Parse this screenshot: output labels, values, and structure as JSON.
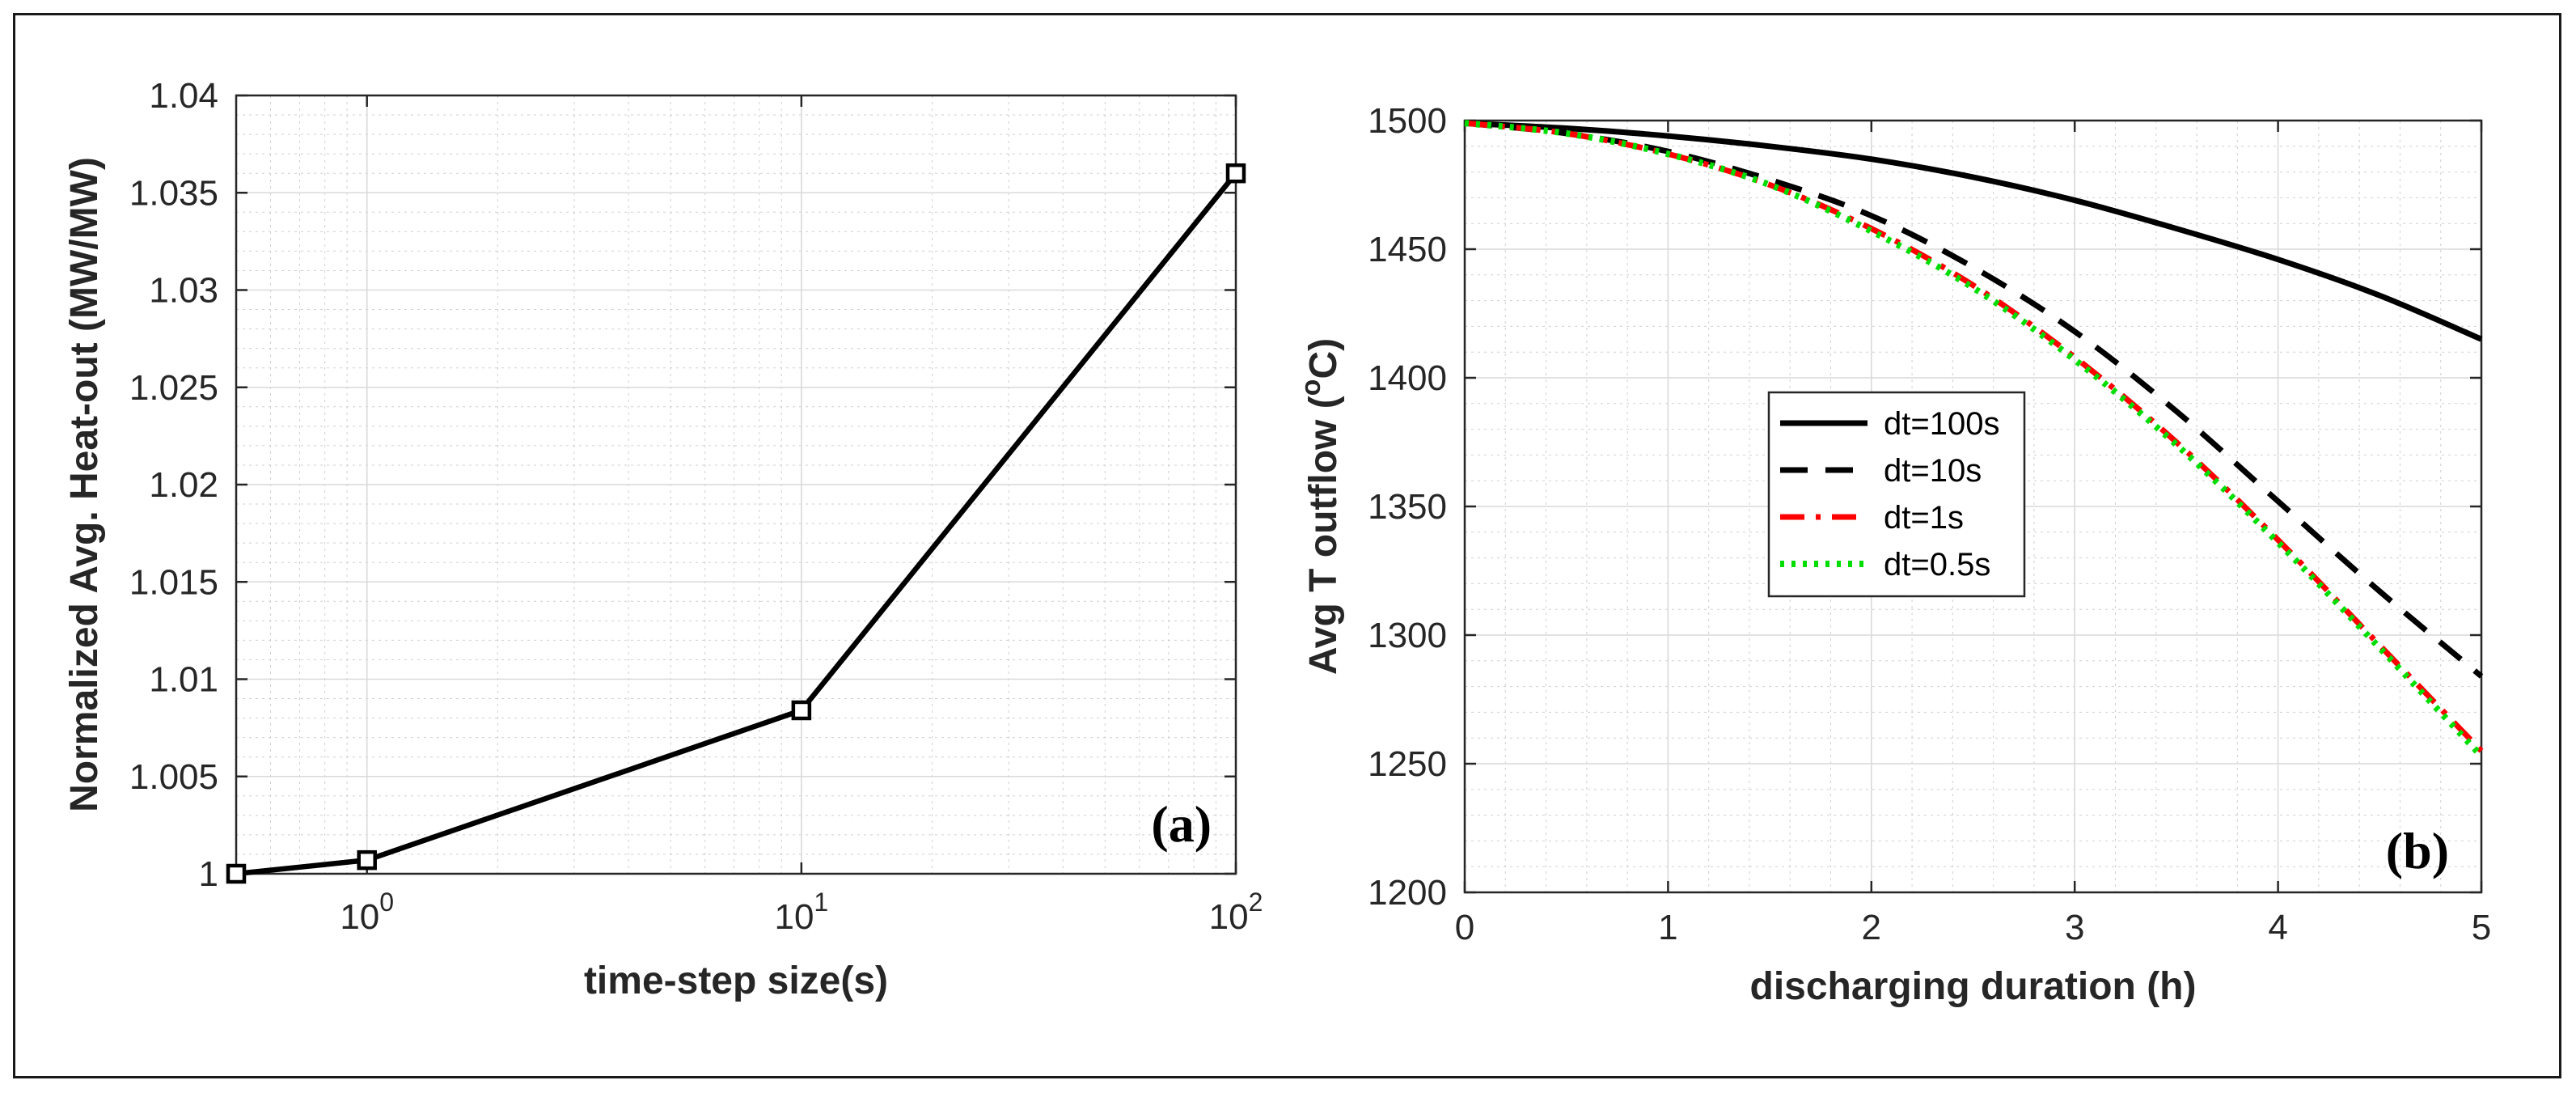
{
  "chart_data": [
    {
      "type": "line",
      "panel_label": "(a)",
      "xscale": "log",
      "xlabel": "time-step size(s)",
      "ylabel": "Normalized Avg. Heat-out (MW/MW)",
      "xlim": [
        0.5,
        100
      ],
      "ylim": [
        1,
        1.04
      ],
      "xticks": [
        1,
        10,
        100
      ],
      "xtick_base": "10",
      "xtick_exponents": [
        "0",
        "1",
        "2"
      ],
      "yticks": [
        1,
        1.005,
        1.01,
        1.015,
        1.02,
        1.025,
        1.03,
        1.035,
        1.04
      ],
      "ytick_labels": [
        "1",
        "1.005",
        "1.01",
        "1.015",
        "1.02",
        "1.025",
        "1.03",
        "1.035",
        "1.04"
      ],
      "grid": true,
      "series": [
        {
          "name": "normalized heat-out",
          "x": [
            0.5,
            1,
            10,
            100
          ],
          "values": [
            1.0,
            1.0007,
            1.0084,
            1.036
          ],
          "color": "#000000",
          "marker": "square"
        }
      ]
    },
    {
      "type": "line",
      "panel_label": "(b)",
      "xlabel": "discharging duration (h)",
      "ylabel": "Avg T outflow",
      "ylabel_unit": "(oC)",
      "xlim": [
        0,
        5
      ],
      "ylim": [
        1200,
        1500
      ],
      "xticks": [
        0,
        1,
        2,
        3,
        4,
        5
      ],
      "yticks": [
        1200,
        1250,
        1300,
        1350,
        1400,
        1450,
        1500
      ],
      "grid": true,
      "legend_position": "center-left",
      "x": [
        0,
        0.5,
        1,
        1.5,
        2,
        2.5,
        3,
        3.5,
        4,
        4.5,
        5
      ],
      "series": [
        {
          "name": "dt=100s",
          "color": "#000000",
          "dash": "solid",
          "values": [
            1499,
            1497,
            1494,
            1490,
            1485,
            1478,
            1469,
            1458,
            1446,
            1432,
            1415
          ]
        },
        {
          "name": "dt=10s",
          "color": "#000000",
          "dash": "dashed",
          "values": [
            1499,
            1495,
            1488,
            1477,
            1463,
            1443,
            1418,
            1387,
            1352,
            1317,
            1284
          ]
        },
        {
          "name": "dt=1s",
          "color": "#ff0000",
          "dash": "dashdot",
          "values": [
            1499,
            1495,
            1487,
            1475,
            1458,
            1436,
            1408,
            1375,
            1337,
            1296,
            1255
          ]
        },
        {
          "name": "dt=0.5s",
          "color": "#00dd00",
          "dash": "dotted",
          "values": [
            1499,
            1495,
            1487,
            1475,
            1457,
            1435,
            1407,
            1374,
            1336,
            1295,
            1253
          ]
        }
      ]
    }
  ]
}
